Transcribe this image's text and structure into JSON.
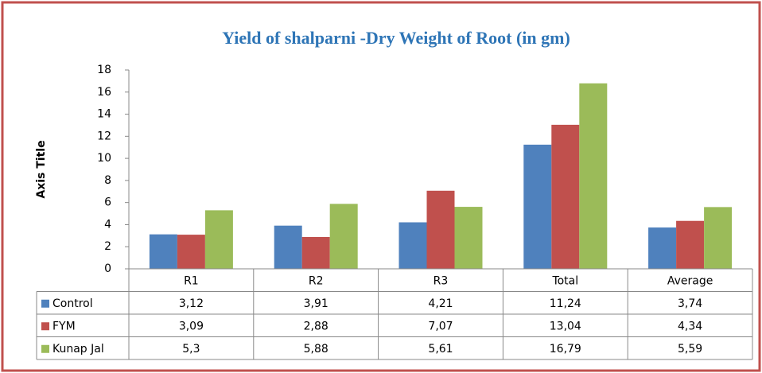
{
  "chart_data": {
    "type": "bar",
    "title": "Yield of shalparni  -Dry Weight of Root (in gm)",
    "y_axis_label": "Axis Title",
    "categories": [
      "R1",
      "R2",
      "R3",
      "Total",
      "Average"
    ],
    "series": [
      {
        "name": "Control",
        "color": "#4f81bd",
        "values": [
          3.12,
          3.91,
          4.21,
          11.24,
          3.74
        ],
        "value_labels": [
          "3,12",
          "3,91",
          "4,21",
          "11,24",
          "3,74"
        ]
      },
      {
        "name": "FYM",
        "color": "#c0504d",
        "values": [
          3.09,
          2.88,
          7.07,
          13.04,
          4.34
        ],
        "value_labels": [
          "3,09",
          "2,88",
          "7,07",
          "13,04",
          "4,34"
        ]
      },
      {
        "name": "Kunap Jal",
        "color": "#9bbb59",
        "values": [
          5.3,
          5.88,
          5.61,
          16.79,
          5.59
        ],
        "value_labels": [
          "5,3",
          "5,88",
          "5,61",
          "16,79",
          "5,59"
        ]
      }
    ],
    "ylim": [
      0,
      18
    ],
    "yticks": [
      0,
      2,
      4,
      6,
      8,
      10,
      12,
      14,
      16,
      18
    ],
    "grid": false
  }
}
